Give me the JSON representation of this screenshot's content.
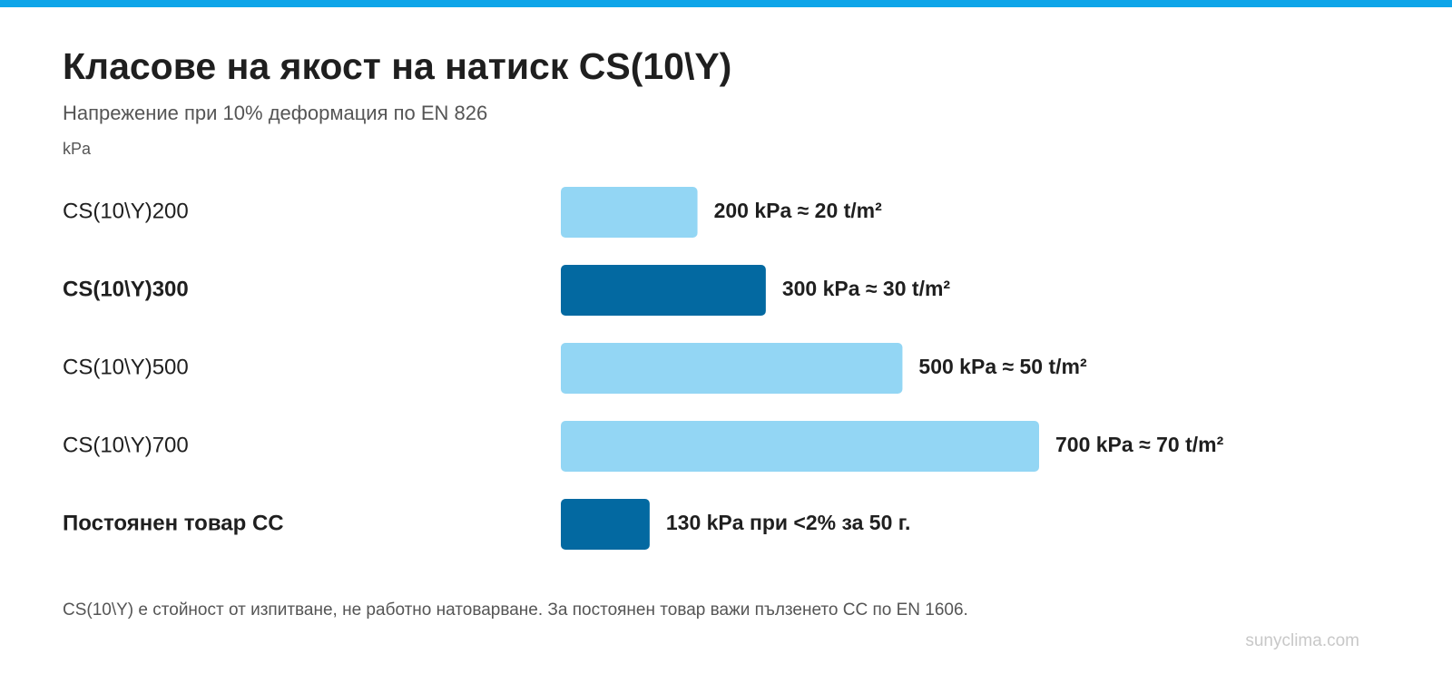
{
  "chart_data": {
    "type": "bar",
    "orientation": "horizontal",
    "title": "Класове на якост на натиск CS(10\\Y)",
    "subtitle": "Напрежение при 10% деформация по EN 826",
    "unit_label": "kPa",
    "categories": [
      "CS(10\\Y)200",
      "CS(10\\Y)300",
      "CS(10\\Y)500",
      "CS(10\\Y)700",
      "Постоянен товар CC"
    ],
    "values": [
      200,
      300,
      500,
      700,
      130
    ],
    "value_labels": [
      "200 kPa ≈ 20 t/m²",
      "300 kPa ≈ 30 t/m²",
      "500 kPa ≈ 50 t/m²",
      "700 kPa ≈ 70 t/m²",
      "130 kPa при <2% за 50 г."
    ],
    "colors": [
      "#93d6f4",
      "#0369a1",
      "#93d6f4",
      "#93d6f4",
      "#0369a1"
    ],
    "highlight": [
      false,
      true,
      false,
      false,
      true
    ],
    "footnote": "CS(10\\Y) е стойност от изпитване, не работно натоварване. За постоянен товар важи пълзенето CC по EN 1606.",
    "source": "sunyclima.com"
  }
}
